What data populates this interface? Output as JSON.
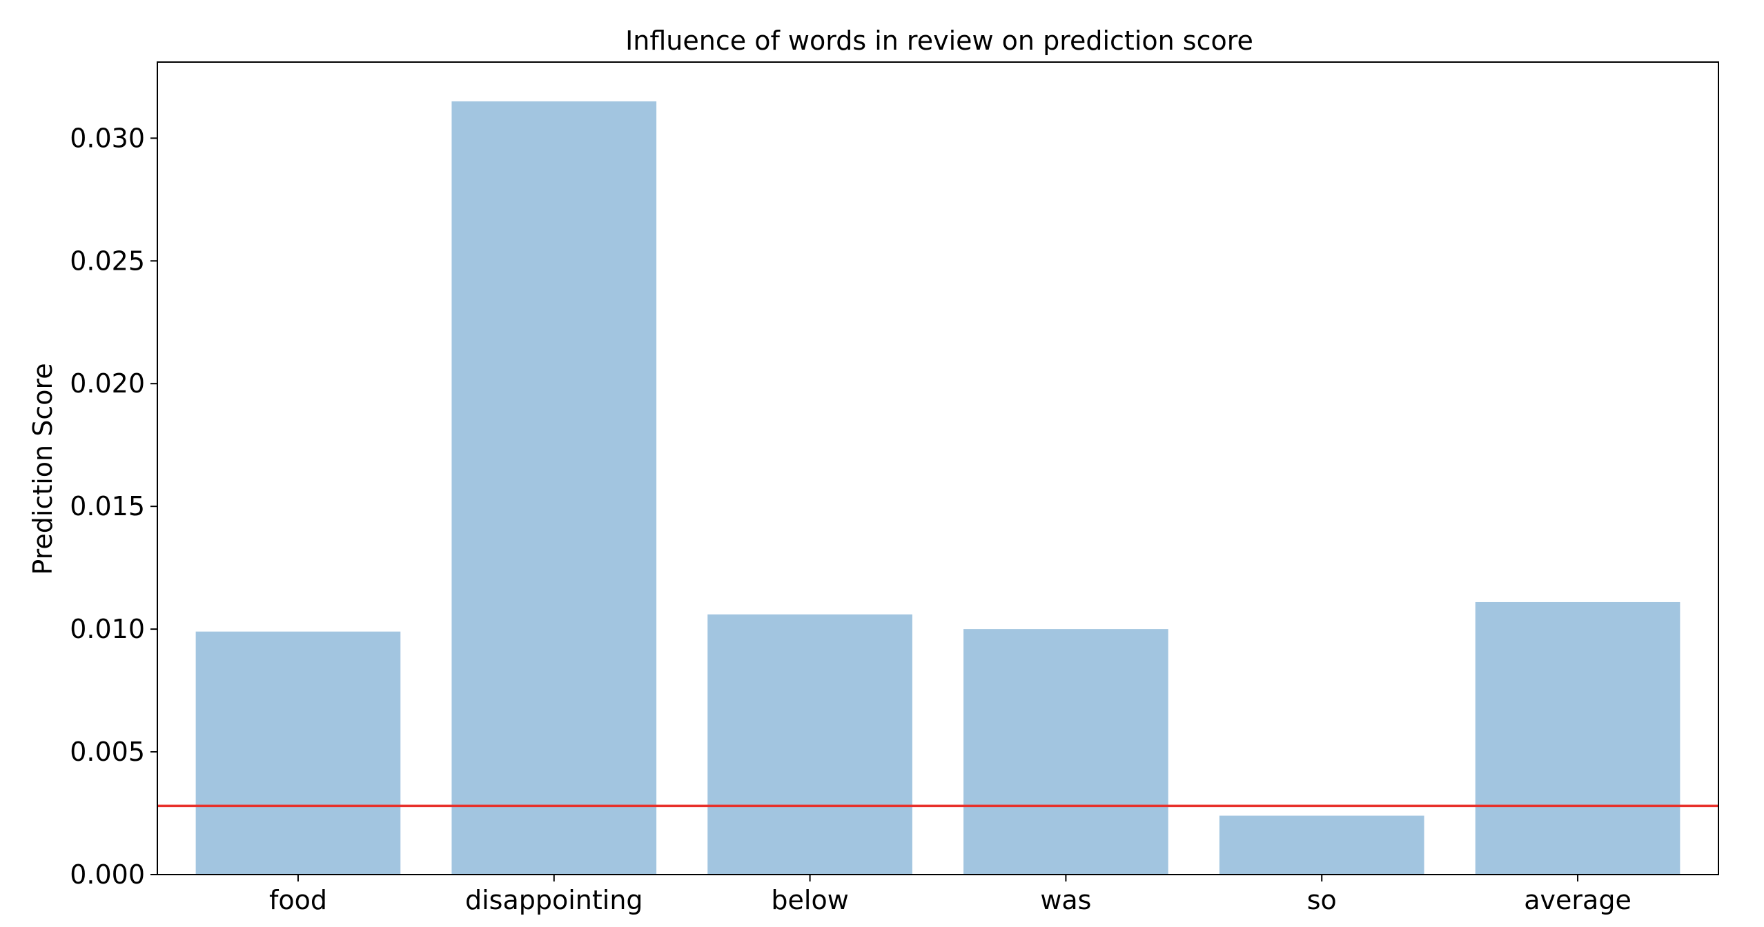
{
  "chart_data": {
    "type": "bar",
    "title": "Influence of words in review on prediction score",
    "xlabel": "",
    "ylabel": "Prediction Score",
    "categories": [
      "food",
      "disappointing",
      "below",
      "was",
      "so",
      "average"
    ],
    "values": [
      0.0099,
      0.0315,
      0.0106,
      0.01,
      0.0024,
      0.0111
    ],
    "ylim": [
      0,
      0.0331
    ],
    "yticks": [
      0.0,
      0.005,
      0.01,
      0.015,
      0.02,
      0.025,
      0.03
    ],
    "ytick_labels": [
      "0.000",
      "0.005",
      "0.010",
      "0.015",
      "0.020",
      "0.025",
      "0.030"
    ],
    "reference_line": {
      "value": 0.0028,
      "color": "#e8302a"
    },
    "bar_color": "#a2c5e0",
    "grid": false,
    "legend": "none"
  }
}
